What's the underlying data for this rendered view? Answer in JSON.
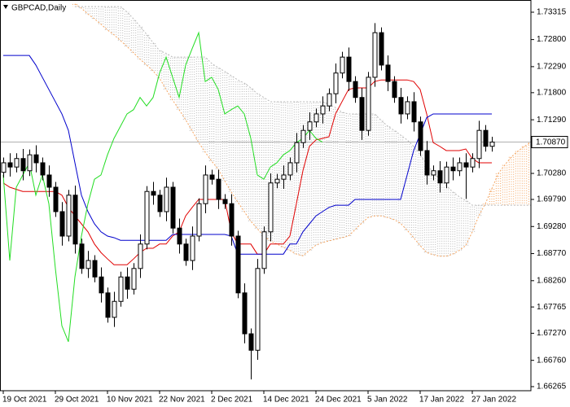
{
  "chart_data": {
    "type": "candlestick",
    "title": "GBPCAD,Daily",
    "categories": [
      "19 Oct 2021",
      null,
      null,
      null,
      null,
      null,
      null,
      null,
      "29 Oct 2021",
      null,
      null,
      null,
      null,
      null,
      null,
      null,
      "10 Nov 2021",
      null,
      null,
      null,
      null,
      null,
      null,
      null,
      "22 Nov 2021",
      null,
      null,
      null,
      null,
      null,
      null,
      null,
      "2 Dec 2021",
      null,
      null,
      null,
      null,
      null,
      null,
      null,
      "14 Dec 2021",
      null,
      null,
      null,
      null,
      null,
      null,
      null,
      "24 Dec 2021",
      null,
      null,
      null,
      null,
      null,
      null,
      null,
      "5 Jan 2022",
      null,
      null,
      null,
      null,
      null,
      null,
      null,
      "17 Jan 2022",
      null,
      null,
      null,
      null,
      null,
      null,
      null,
      "27 Jan 2022",
      null,
      null,
      null,
      null,
      null,
      null,
      null,
      null,
      null
    ],
    "open": [
      1.703,
      1.7048,
      1.704,
      1.7056,
      1.7033,
      1.7063,
      1.7048,
      1.7025,
      1.7002,
      1.6956,
      1.691,
      1.6987,
      1.6895,
      1.6849,
      1.6864,
      1.6833,
      1.6803,
      1.6757,
      1.6787,
      1.6833,
      1.681,
      1.6849,
      1.6895,
      1.6994,
      1.6987,
      1.6956,
      1.7002,
      1.6925,
      1.6895,
      1.6864,
      1.691,
      1.6971,
      1.7025,
      1.7017,
      1.6979,
      1.6971,
      1.691,
      1.6803,
      1.6726,
      1.6695,
      1.6849,
      1.6918,
      1.701,
      1.7017,
      1.7025,
      1.7048,
      1.7086,
      1.7109,
      1.7125,
      1.714,
      1.7155,
      1.7178,
      1.7217,
      1.7247,
      1.7201,
      1.7171,
      1.7109,
      1.7209,
      1.7293,
      1.7232,
      1.7201,
      1.7171,
      1.714,
      1.7163,
      1.7125,
      1.7071,
      1.7025,
      1.7033,
      1.701,
      1.704,
      1.7033,
      1.7048,
      1.704,
      1.7056,
      1.7109,
      1.7079,
      null,
      null,
      null,
      null,
      null,
      null
    ],
    "high": [
      1.7058,
      1.7066,
      1.7066,
      1.7074,
      1.7073,
      1.7081,
      1.7058,
      1.7043,
      1.7012,
      1.6974,
      1.6997,
      1.7005,
      1.6905,
      1.6882,
      1.6874,
      1.6851,
      1.6813,
      1.6805,
      1.6843,
      1.6851,
      1.6859,
      1.6913,
      1.7004,
      1.7012,
      1.6997,
      1.702,
      1.7012,
      1.6943,
      1.6905,
      1.6928,
      1.6981,
      1.7043,
      1.7035,
      1.7035,
      1.6989,
      1.6989,
      1.692,
      1.6821,
      1.6736,
      1.6867,
      1.6928,
      1.7028,
      1.7027,
      1.7043,
      1.7058,
      1.7104,
      1.7119,
      1.7143,
      1.715,
      1.7173,
      1.7188,
      1.7235,
      1.7257,
      1.7265,
      1.7211,
      1.7189,
      1.7219,
      1.7311,
      1.7303,
      1.725,
      1.7211,
      1.7189,
      1.7173,
      1.7181,
      1.7135,
      1.7089,
      1.7043,
      1.7051,
      1.705,
      1.7058,
      1.7058,
      1.7066,
      1.7066,
      1.7127,
      1.7119,
      1.7097,
      null,
      null,
      null,
      null,
      null,
      null
    ],
    "low": [
      1.702,
      1.7022,
      1.703,
      1.7015,
      1.7023,
      1.703,
      1.7015,
      1.6984,
      1.6946,
      1.6892,
      1.69,
      1.6877,
      1.6839,
      1.6831,
      1.6823,
      1.6785,
      1.6747,
      1.6739,
      1.6777,
      1.6792,
      1.68,
      1.6831,
      1.6885,
      1.6969,
      1.6946,
      1.6938,
      1.6915,
      1.6877,
      1.6854,
      1.6846,
      1.69,
      1.6953,
      1.7007,
      1.6961,
      1.6961,
      1.6892,
      1.6793,
      1.6708,
      1.664,
      1.6677,
      1.6839,
      1.69,
      1.7,
      1.6999,
      1.7015,
      1.703,
      1.7076,
      1.7091,
      1.7115,
      1.7122,
      1.7145,
      1.716,
      1.7207,
      1.7183,
      1.7161,
      1.7091,
      1.7099,
      1.7191,
      1.7222,
      1.7183,
      1.7161,
      1.7122,
      1.713,
      1.7107,
      1.7061,
      1.7007,
      1.7015,
      1.6992,
      1.7,
      1.7015,
      1.7023,
      1.698,
      1.703,
      1.7038,
      1.7069,
      1.7069,
      null,
      null,
      null,
      null,
      null,
      null
    ],
    "close": [
      1.7048,
      1.704,
      1.7056,
      1.7033,
      1.7063,
      1.7048,
      1.7025,
      1.7002,
      1.6956,
      1.691,
      1.6987,
      1.6895,
      1.6849,
      1.6864,
      1.6833,
      1.6803,
      1.6757,
      1.6787,
      1.6833,
      1.681,
      1.6849,
      1.6895,
      1.6994,
      1.6987,
      1.6956,
      1.7002,
      1.6925,
      1.6895,
      1.6864,
      1.691,
      1.6971,
      1.7025,
      1.7017,
      1.6979,
      1.6971,
      1.691,
      1.6803,
      1.6726,
      1.6695,
      1.6849,
      1.6918,
      1.701,
      1.7017,
      1.7025,
      1.7048,
      1.7086,
      1.7109,
      1.7125,
      1.714,
      1.7155,
      1.7178,
      1.7217,
      1.7247,
      1.7201,
      1.7171,
      1.7109,
      1.7209,
      1.7293,
      1.7232,
      1.7201,
      1.7171,
      1.714,
      1.7163,
      1.7125,
      1.7071,
      1.7025,
      1.7033,
      1.701,
      1.704,
      1.7033,
      1.7048,
      1.704,
      1.7056,
      1.7109,
      1.7079,
      1.7087,
      null,
      null,
      null,
      null,
      null,
      null
    ],
    "candle_up_color": "#ffffff",
    "candle_down_color": "#000000",
    "lines": [
      {
        "color": "#e00000",
        "values": [
          1.701,
          1.7002,
          1.6998,
          1.6994,
          1.6994,
          1.6994,
          1.6994,
          1.6994,
          1.6994,
          1.6987,
          1.6964,
          1.6948,
          1.6933,
          1.6918,
          1.6895,
          1.6879,
          1.6867,
          1.6856,
          1.6856,
          1.6856,
          1.6867,
          1.6879,
          1.6887,
          1.6887,
          1.6895,
          1.6895,
          1.691,
          1.6918,
          1.6948,
          1.6964,
          1.6979,
          1.6979,
          1.6979,
          1.6979,
          1.6979,
          1.6918,
          1.6895,
          1.6895,
          1.6895,
          1.6876,
          1.6876,
          1.6895,
          1.6895,
          1.6895,
          1.691,
          1.6971,
          1.7033,
          1.7079,
          1.7091,
          1.7094,
          1.7097,
          1.714,
          1.7163,
          1.7186,
          1.7189,
          1.7189,
          1.7189,
          1.7201,
          1.7204,
          1.7204,
          1.7204,
          1.7204,
          1.7204,
          1.7201,
          1.7186,
          1.714,
          1.7086,
          1.7079,
          1.7071,
          1.7071,
          1.7071,
          1.7074,
          1.7056,
          1.7048,
          1.7048,
          1.7048,
          null,
          null,
          null,
          null,
          null,
          null
        ]
      },
      {
        "color": "#0000cc",
        "values": [
          1.725,
          1.725,
          1.725,
          1.725,
          1.725,
          1.7232,
          1.7209,
          1.7186,
          1.7163,
          1.714,
          1.7109,
          1.7048,
          1.6987,
          1.6956,
          1.6933,
          1.6918,
          1.691,
          1.6907,
          1.6902,
          1.6902,
          1.6902,
          1.6902,
          1.6902,
          1.6902,
          1.6902,
          1.6902,
          1.6913,
          1.6913,
          1.6913,
          1.6913,
          1.6913,
          1.6913,
          1.6913,
          1.6913,
          1.6913,
          1.691,
          1.6876,
          1.6876,
          1.6876,
          1.6876,
          1.6876,
          1.6876,
          1.6876,
          1.6876,
          1.6895,
          1.6895,
          1.6918,
          1.6933,
          1.6948,
          1.6956,
          1.6964,
          1.6968,
          1.6968,
          1.6968,
          1.6979,
          1.6979,
          1.6979,
          1.6979,
          1.6979,
          1.6979,
          1.6979,
          1.6979,
          1.7025,
          1.7071,
          1.7102,
          1.7133,
          1.714,
          1.714,
          1.714,
          1.714,
          1.714,
          1.714,
          1.714,
          1.714,
          1.714,
          1.714,
          null,
          null,
          null,
          null,
          null,
          null
        ]
      },
      {
        "color": "#22dd22",
        "values": [
          1.7025,
          1.6864,
          1.7002,
          1.7025,
          1.7048,
          1.6987,
          1.7025,
          1.6971,
          1.6849,
          1.6741,
          1.6711,
          1.6833,
          1.691,
          1.6971,
          1.7017,
          1.7025,
          1.7063,
          1.7094,
          1.7117,
          1.714,
          1.7148,
          1.7171,
          1.7155,
          1.7171,
          1.7217,
          1.7247,
          1.7209,
          1.7171,
          1.7232,
          1.7263,
          1.7293,
          1.7201,
          1.7209,
          1.7186,
          1.714,
          1.7148,
          1.7155,
          1.714,
          1.7094,
          1.7025,
          1.7017,
          1.704,
          1.7048,
          1.7063,
          1.7071,
          1.7086,
          1.7094,
          1.7109,
          1.7094,
          1.7087,
          null,
          null,
          null,
          null,
          null,
          null,
          null,
          null,
          null,
          null,
          null,
          null,
          null,
          null,
          null,
          null,
          null,
          null,
          null,
          null,
          null,
          null,
          null,
          null,
          null,
          null,
          null,
          null,
          null,
          null,
          null,
          null
        ]
      }
    ],
    "cloud": {
      "color_a": "#f4a460",
      "color_b": "#b8b8b8",
      "span_a": [
        null,
        null,
        null,
        null,
        null,
        null,
        null,
        null,
        null,
        null,
        null,
        1.7347,
        1.7339,
        1.7328,
        1.7319,
        1.7309,
        1.7298,
        1.7289,
        1.7278,
        1.7267,
        1.7255,
        1.7243,
        1.7232,
        1.7221,
        1.7207,
        1.7186,
        1.7166,
        1.7148,
        1.7129,
        1.7108,
        1.7086,
        1.7068,
        1.7051,
        1.7036,
        1.7014,
        1.6993,
        1.6974,
        1.6956,
        1.6938,
        1.6924,
        1.691,
        1.6901,
        1.6895,
        1.6889,
        1.6883,
        1.6876,
        1.6873,
        1.6883,
        1.6893,
        1.6898,
        1.6901,
        1.6904,
        1.6907,
        1.691,
        1.6922,
        1.6934,
        1.6945,
        1.6948,
        1.6948,
        1.6945,
        1.6941,
        1.6934,
        1.6921,
        1.6907,
        1.6892,
        1.6879,
        1.6875,
        1.6872,
        1.6872,
        1.6876,
        1.6883,
        1.6892,
        1.6918,
        1.6948,
        1.6971,
        1.6999,
        1.7028,
        1.7044,
        1.7059,
        1.707,
        1.7079,
        1.7086
      ],
      "span_b": [
        null,
        null,
        null,
        null,
        null,
        null,
        null,
        null,
        null,
        null,
        null,
        1.7342,
        1.7342,
        1.7342,
        1.7342,
        1.7342,
        1.7342,
        1.7342,
        1.7342,
        1.7332,
        1.7319,
        1.7305,
        1.729,
        1.7274,
        1.7259,
        1.7254,
        1.7247,
        1.7247,
        1.7247,
        1.7247,
        1.7247,
        1.7247,
        1.7235,
        1.7227,
        1.722,
        1.7212,
        1.7204,
        1.7198,
        1.7189,
        1.7178,
        1.7171,
        1.7163,
        1.7163,
        1.7163,
        1.7163,
        1.7163,
        1.7163,
        1.7163,
        1.7163,
        1.7163,
        1.7158,
        1.7152,
        1.7143,
        1.714,
        1.714,
        1.714,
        1.714,
        1.714,
        1.7128,
        1.7117,
        1.7109,
        1.71,
        1.7091,
        1.7079,
        1.7063,
        1.7045,
        1.703,
        1.7017,
        1.7005,
        1.6993,
        1.6984,
        1.6977,
        1.6968,
        1.6968,
        1.6968,
        1.6968,
        1.6968,
        1.6968,
        1.6968,
        1.6968,
        1.6968,
        1.6968
      ]
    },
    "last_price": {
      "value": 1.7087,
      "label": "1.70870"
    },
    "ylim": [
      1.66188,
      1.73545
    ],
    "yticks": [
      {
        "value": 1.73315,
        "label": "1.73315"
      },
      {
        "value": 1.728,
        "label": "1.72800"
      },
      {
        "value": 1.7229,
        "label": "1.72290"
      },
      {
        "value": 1.718,
        "label": "1.71800"
      },
      {
        "value": 1.7129,
        "label": "1.71290"
      },
      {
        "value": 1.7028,
        "label": "1.70280"
      },
      {
        "value": 1.6979,
        "label": "1.69790"
      },
      {
        "value": 1.6928,
        "label": "1.69280"
      },
      {
        "value": 1.6877,
        "label": "1.68770"
      },
      {
        "value": 1.6826,
        "label": "1.68260"
      },
      {
        "value": 1.67765,
        "label": "1.67765"
      },
      {
        "value": 1.6727,
        "label": "1.67270"
      },
      {
        "value": 1.6676,
        "label": "1.66760"
      },
      {
        "value": 1.66265,
        "label": "1.66265"
      }
    ]
  }
}
